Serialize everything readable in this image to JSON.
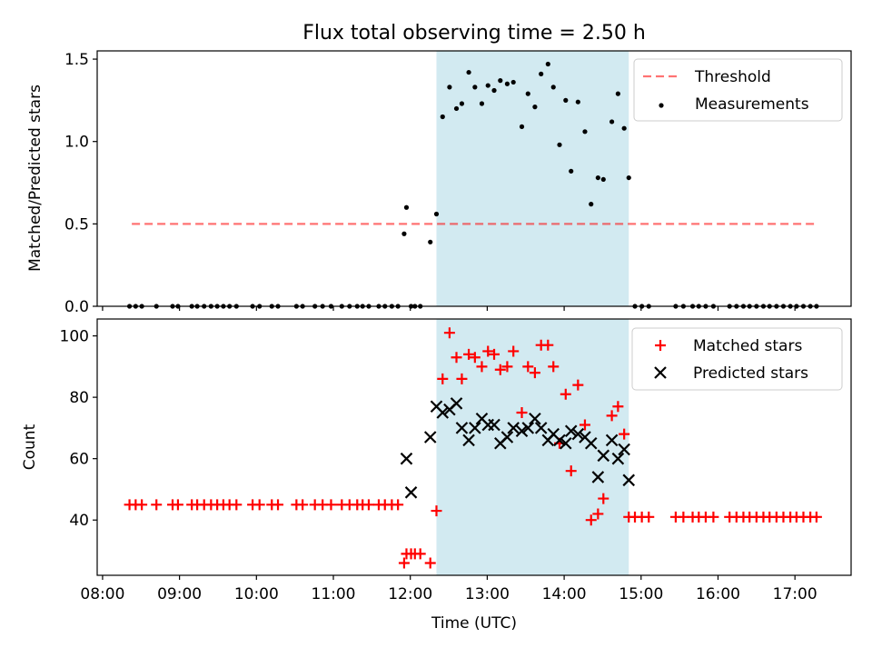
{
  "figure": {
    "title": "Flux total observing time = 2.50 h",
    "xlabel": "Time (UTC)",
    "xticks": [
      {
        "label": "08:00",
        "hour": 8
      },
      {
        "label": "09:00",
        "hour": 9
      },
      {
        "label": "10:00",
        "hour": 10
      },
      {
        "label": "11:00",
        "hour": 11
      },
      {
        "label": "12:00",
        "hour": 12
      },
      {
        "label": "13:00",
        "hour": 13
      },
      {
        "label": "14:00",
        "hour": 14
      },
      {
        "label": "15:00",
        "hour": 15
      },
      {
        "label": "16:00",
        "hour": 16
      },
      {
        "label": "17:00",
        "hour": 17
      }
    ],
    "highlight_span_hours": [
      12.34,
      14.84
    ],
    "xlim_hours": [
      7.93,
      17.73
    ],
    "colors": {
      "span": "#add8e6",
      "threshold": "#ff0000",
      "matched": "#ff0000",
      "predicted": "#000000",
      "measurement": "#000000"
    }
  },
  "chart_data": [
    {
      "type": "scatter",
      "panel": "top",
      "ylabel": "Matched/Predicted stars",
      "ylim": [
        0,
        1.55
      ],
      "yticks": [
        {
          "label": "0.0",
          "value": 0
        },
        {
          "label": "0.5",
          "value": 0.5
        },
        {
          "label": "1.0",
          "value": 1.0
        },
        {
          "label": "1.5",
          "value": 1.5
        }
      ],
      "threshold": {
        "name": "Threshold",
        "value": 0.5,
        "x_range_hours": [
          8.38,
          17.29
        ]
      },
      "legend": {
        "position": "top-right",
        "entries": [
          "Threshold",
          "Measurements"
        ]
      },
      "series": [
        {
          "name": "Measurements",
          "x": [
            8.35,
            8.43,
            8.51,
            8.7,
            8.91,
            8.98,
            9.16,
            9.23,
            9.32,
            9.41,
            9.49,
            9.57,
            9.65,
            9.74,
            9.95,
            10.04,
            10.2,
            10.28,
            10.52,
            10.6,
            10.76,
            10.86,
            10.97,
            11.11,
            11.21,
            11.31,
            11.38,
            11.46,
            11.59,
            11.67,
            11.76,
            11.84,
            11.92,
            11.95,
            12.01,
            12.06,
            12.13,
            12.26,
            12.34,
            12.42,
            12.51,
            12.6,
            12.67,
            12.76,
            12.84,
            12.93,
            13.01,
            13.09,
            13.17,
            13.26,
            13.34,
            13.45,
            13.53,
            13.62,
            13.7,
            13.79,
            13.86,
            13.94,
            14.02,
            14.09,
            14.18,
            14.27,
            14.35,
            14.44,
            14.51,
            14.62,
            14.7,
            14.78,
            14.84,
            14.92,
            15.01,
            15.1,
            15.45,
            15.55,
            15.67,
            15.75,
            15.84,
            15.94,
            16.15,
            16.24,
            16.33,
            16.41,
            16.5,
            16.59,
            16.67,
            16.76,
            16.85,
            16.94,
            17.02,
            17.11,
            17.2,
            17.28
          ],
          "y": [
            0,
            0,
            0,
            0,
            0,
            0,
            0,
            0,
            0,
            0,
            0,
            0,
            0,
            0,
            0,
            0,
            0,
            0,
            0,
            0,
            0,
            0,
            0,
            0,
            0,
            0,
            0,
            0,
            0,
            0,
            0,
            0,
            0.44,
            0.6,
            0,
            0,
            0,
            0.39,
            0.56,
            1.15,
            1.33,
            1.2,
            1.23,
            1.42,
            1.33,
            1.23,
            1.34,
            1.31,
            1.37,
            1.35,
            1.36,
            1.09,
            1.29,
            1.21,
            1.41,
            1.47,
            1.33,
            0.98,
            1.25,
            0.82,
            1.24,
            1.06,
            0.62,
            0.78,
            0.77,
            1.12,
            1.29,
            1.08,
            0.78,
            0,
            0,
            0,
            0,
            0,
            0,
            0,
            0,
            0,
            0,
            0,
            0,
            0,
            0,
            0,
            0,
            0,
            0,
            0,
            0,
            0,
            0,
            0
          ]
        }
      ]
    },
    {
      "type": "scatter",
      "panel": "bottom",
      "ylabel": "Count",
      "ylim": [
        22,
        105.5
      ],
      "yticks": [
        {
          "label": "40",
          "value": 40
        },
        {
          "label": "60",
          "value": 60
        },
        {
          "label": "80",
          "value": 80
        },
        {
          "label": "100",
          "value": 100
        }
      ],
      "legend": {
        "position": "top-right",
        "entries": [
          "Matched stars",
          "Predicted stars"
        ]
      },
      "series": [
        {
          "name": "Matched stars",
          "marker": "plus",
          "x": [
            8.35,
            8.43,
            8.51,
            8.7,
            8.91,
            8.98,
            9.16,
            9.23,
            9.32,
            9.41,
            9.49,
            9.57,
            9.65,
            9.74,
            9.95,
            10.04,
            10.2,
            10.28,
            10.52,
            10.6,
            10.76,
            10.86,
            10.97,
            11.11,
            11.21,
            11.31,
            11.38,
            11.46,
            11.59,
            11.67,
            11.76,
            11.84,
            11.92,
            11.95,
            12.01,
            12.06,
            12.13,
            12.26,
            12.34,
            12.42,
            12.51,
            12.6,
            12.67,
            12.76,
            12.84,
            12.93,
            13.01,
            13.09,
            13.17,
            13.26,
            13.34,
            13.45,
            13.53,
            13.62,
            13.7,
            13.79,
            13.86,
            13.94,
            14.02,
            14.09,
            14.18,
            14.27,
            14.35,
            14.44,
            14.51,
            14.62,
            14.7,
            14.78,
            14.84,
            14.92,
            15.01,
            15.1,
            15.45,
            15.55,
            15.67,
            15.75,
            15.84,
            15.94,
            16.15,
            16.24,
            16.33,
            16.41,
            16.5,
            16.59,
            16.67,
            16.76,
            16.85,
            16.94,
            17.02,
            17.11,
            17.2,
            17.28
          ],
          "y": [
            45,
            45,
            45,
            45,
            45,
            45,
            45,
            45,
            45,
            45,
            45,
            45,
            45,
            45,
            45,
            45,
            45,
            45,
            45,
            45,
            45,
            45,
            45,
            45,
            45,
            45,
            45,
            45,
            45,
            45,
            45,
            45,
            26,
            29,
            29,
            29,
            29,
            26,
            43,
            86,
            101,
            93,
            86,
            94,
            93,
            90,
            95,
            94,
            89,
            90,
            95,
            75,
            90,
            88,
            97,
            97,
            90,
            65,
            81,
            56,
            84,
            71,
            40,
            42,
            47,
            74,
            77,
            68,
            41,
            41,
            41,
            41,
            41,
            41,
            41,
            41,
            41,
            41,
            41,
            41,
            41,
            41,
            41,
            41,
            41,
            41,
            41,
            41,
            41,
            41,
            41,
            41
          ]
        },
        {
          "name": "Predicted stars",
          "marker": "x",
          "x": [
            11.95,
            12.01,
            12.26,
            12.34,
            12.42,
            12.51,
            12.6,
            12.67,
            12.76,
            12.84,
            12.93,
            13.01,
            13.09,
            13.17,
            13.26,
            13.34,
            13.45,
            13.53,
            13.62,
            13.7,
            13.79,
            13.86,
            13.94,
            14.02,
            14.09,
            14.18,
            14.27,
            14.35,
            14.44,
            14.51,
            14.62,
            14.7,
            14.78,
            14.84
          ],
          "y": [
            60,
            49,
            67,
            77,
            75,
            76,
            78,
            70,
            66,
            70,
            73,
            71,
            71,
            65,
            67,
            70,
            69,
            70,
            73,
            70,
            66,
            68,
            66,
            65,
            69,
            68,
            67,
            65,
            54,
            61,
            66,
            60,
            63,
            53
          ]
        }
      ]
    }
  ]
}
